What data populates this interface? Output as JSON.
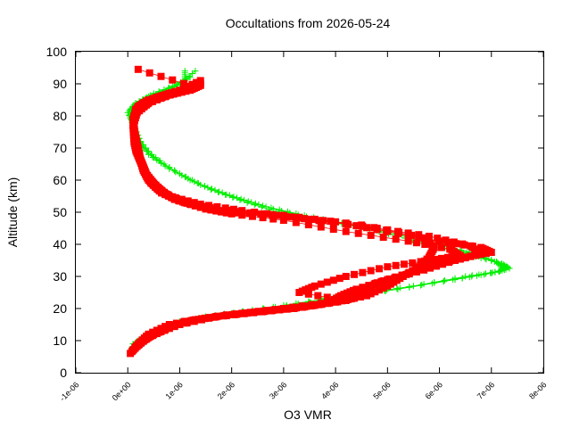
{
  "chart_data": {
    "type": "scatter",
    "title": "Occultations from 2026-05-24",
    "xlabel": "O3 VMR",
    "ylabel": "Altitude (km)",
    "xlim": [
      -1e-06,
      8e-06
    ],
    "ylim": [
      0,
      100
    ],
    "grid": false,
    "legend": "none",
    "x_ticks": [
      {
        "value": -1e-06,
        "label": "-1e-06"
      },
      {
        "value": 0,
        "label": "0e+00"
      },
      {
        "value": 1e-06,
        "label": "1e-06"
      },
      {
        "value": 2e-06,
        "label": "2e-06"
      },
      {
        "value": 3e-06,
        "label": "3e-06"
      },
      {
        "value": 4e-06,
        "label": "4e-06"
      },
      {
        "value": 5e-06,
        "label": "5e-06"
      },
      {
        "value": 6e-06,
        "label": "6e-06"
      },
      {
        "value": 7e-06,
        "label": "7e-06"
      },
      {
        "value": 8e-06,
        "label": "8e-06"
      }
    ],
    "y_ticks": [
      {
        "value": 0,
        "label": "0"
      },
      {
        "value": 10,
        "label": "10"
      },
      {
        "value": 20,
        "label": "20"
      },
      {
        "value": 30,
        "label": "30"
      },
      {
        "value": 40,
        "label": "40"
      },
      {
        "value": 50,
        "label": "50"
      },
      {
        "value": 60,
        "label": "60"
      },
      {
        "value": 70,
        "label": "70"
      },
      {
        "value": 80,
        "label": "80"
      },
      {
        "value": 90,
        "label": "90"
      },
      {
        "value": 100,
        "label": "100"
      }
    ],
    "series": [
      {
        "marker": "plus",
        "color": "#00ee00",
        "profiles": [
          [
            [
              6e-08,
              7
            ],
            [
              2e-07,
              10
            ],
            [
              5e-07,
              13
            ],
            [
              1e-06,
              16
            ],
            [
              1.8e-06,
              18
            ],
            [
              2.8e-06,
              20
            ],
            [
              4e-06,
              23
            ],
            [
              5.2e-06,
              26
            ],
            [
              6.3e-06,
              29
            ],
            [
              7e-06,
              31
            ],
            [
              7.35e-06,
              32.5
            ],
            [
              7.2e-06,
              34
            ],
            [
              6.7e-06,
              37
            ],
            [
              6e-06,
              40
            ],
            [
              5e-06,
              44
            ],
            [
              3.9e-06,
              47
            ],
            [
              3e-06,
              49.5
            ],
            [
              2.3e-06,
              53
            ],
            [
              1.6e-06,
              57
            ],
            [
              1e-06,
              62
            ],
            [
              5e-07,
              67
            ],
            [
              2.5e-07,
              72
            ],
            [
              1.2e-07,
              77
            ],
            [
              0,
              81
            ],
            [
              1.5e-07,
              84
            ],
            [
              5e-07,
              87
            ],
            [
              1e-06,
              90
            ],
            [
              1.3e-06,
              94
            ]
          ],
          [
            [
              8e-08,
              8
            ],
            [
              3e-07,
              11
            ],
            [
              7e-07,
              14
            ],
            [
              1.2e-06,
              16.5
            ],
            [
              2e-06,
              18.5
            ],
            [
              3e-06,
              21
            ],
            [
              4.2e-06,
              24
            ],
            [
              5.5e-06,
              27
            ],
            [
              6.5e-06,
              30
            ],
            [
              7.15e-06,
              31.5
            ],
            [
              7.3e-06,
              33
            ],
            [
              7e-06,
              35
            ],
            [
              6.4e-06,
              38
            ],
            [
              5.6e-06,
              41.5
            ],
            [
              4.6e-06,
              45
            ],
            [
              3.6e-06,
              48
            ],
            [
              2.8e-06,
              51
            ],
            [
              2.1e-06,
              54.5
            ],
            [
              1.4e-06,
              58.5
            ],
            [
              8e-07,
              63.5
            ],
            [
              4e-07,
              68
            ],
            [
              2e-07,
              73
            ],
            [
              8e-08,
              78
            ],
            [
              5e-08,
              82
            ],
            [
              3e-07,
              85
            ],
            [
              7e-07,
              88
            ],
            [
              1.1e-06,
              91
            ],
            [
              1.1e-06,
              94
            ]
          ],
          [
            [
              1e-07,
              9
            ],
            [
              4e-07,
              12
            ],
            [
              9e-07,
              15
            ],
            [
              1.5e-06,
              17.5
            ],
            [
              2.4e-06,
              19.5
            ],
            [
              3.5e-06,
              22
            ],
            [
              4.7e-06,
              25
            ],
            [
              5.9e-06,
              28
            ],
            [
              6.8e-06,
              30.5
            ],
            [
              7.25e-06,
              32
            ],
            [
              7.1e-06,
              34.5
            ],
            [
              6.6e-06,
              36.5
            ],
            [
              5.9e-06,
              39.5
            ],
            [
              5.2e-06,
              42.5
            ],
            [
              4.3e-06,
              46
            ],
            [
              3.4e-06,
              49
            ],
            [
              2.6e-06,
              52
            ],
            [
              1.9e-06,
              55.5
            ],
            [
              1.2e-06,
              60
            ],
            [
              7e-07,
              65
            ],
            [
              3e-07,
              70
            ],
            [
              1.5e-07,
              75
            ],
            [
              4e-08,
              80
            ],
            [
              1e-07,
              83
            ],
            [
              4e-07,
              86
            ],
            [
              9e-07,
              89
            ],
            [
              1.2e-06,
              92
            ]
          ]
        ]
      },
      {
        "marker": "square",
        "color": "#ff0000",
        "profiles": [
          [
            [
              5e-08,
              6
            ],
            [
              2e-07,
              9
            ],
            [
              4e-07,
              12
            ],
            [
              8e-07,
              15
            ],
            [
              1.5e-06,
              17
            ],
            [
              2.5e-06,
              19
            ],
            [
              3.2e-06,
              20
            ],
            [
              4e-06,
              22
            ],
            [
              4.6e-06,
              24
            ],
            [
              5e-06,
              27
            ],
            [
              5.3e-06,
              30
            ],
            [
              5.6e-06,
              33
            ],
            [
              5.8e-06,
              36
            ],
            [
              5.9e-06,
              39
            ],
            [
              5.7e-06,
              42
            ],
            [
              4.5e-06,
              46
            ],
            [
              3e-06,
              49
            ],
            [
              1.9e-06,
              50
            ],
            [
              1.3e-06,
              52
            ],
            [
              9e-07,
              54
            ],
            [
              6e-07,
              57
            ],
            [
              4e-07,
              60
            ],
            [
              3e-07,
              63
            ],
            [
              2.5e-07,
              66
            ],
            [
              2e-07,
              70
            ],
            [
              1.5e-07,
              73
            ],
            [
              1.2e-07,
              76
            ],
            [
              1.2e-07,
              80
            ],
            [
              2e-07,
              83
            ],
            [
              4e-07,
              85
            ],
            [
              8e-07,
              87
            ],
            [
              1.3e-06,
              89
            ],
            [
              1.4e-06,
              90
            ]
          ],
          [
            [
              1e-07,
              7
            ],
            [
              3e-07,
              10
            ],
            [
              6e-07,
              13
            ],
            [
              1.1e-06,
              16
            ],
            [
              1.9e-06,
              18
            ],
            [
              2.8e-06,
              19.5
            ],
            [
              3.6e-06,
              21
            ],
            [
              4.3e-06,
              23
            ],
            [
              4.5e-06,
              25
            ],
            [
              4.8e-06,
              28
            ],
            [
              5.4e-06,
              31
            ],
            [
              6e-06,
              34
            ],
            [
              6.5e-06,
              36
            ],
            [
              7e-06,
              37.5
            ],
            [
              6.8e-06,
              39
            ],
            [
              6e-06,
              41
            ],
            [
              5e-06,
              44
            ],
            [
              4e-06,
              47
            ],
            [
              2.8e-06,
              49
            ],
            [
              1.7e-06,
              51
            ],
            [
              1.1e-06,
              53
            ],
            [
              7e-07,
              56
            ],
            [
              5e-07,
              59
            ],
            [
              3.5e-07,
              62
            ],
            [
              2.8e-07,
              65
            ],
            [
              2e-07,
              68
            ],
            [
              1.8e-07,
              71
            ],
            [
              1.4e-07,
              74
            ],
            [
              1.1e-07,
              78
            ],
            [
              1.5e-07,
              82
            ],
            [
              3e-07,
              84
            ],
            [
              6e-07,
              86
            ],
            [
              1e-06,
              88
            ],
            [
              1.4e-06,
              91
            ]
          ],
          [
            [
              1.5e-07,
              8
            ],
            [
              4e-07,
              11
            ],
            [
              8e-07,
              14
            ],
            [
              1.3e-06,
              16.5
            ],
            [
              2.2e-06,
              18.5
            ],
            [
              3e-06,
              20
            ],
            [
              3.9e-06,
              22
            ],
            [
              4.1e-06,
              24
            ],
            [
              4.4e-06,
              26
            ],
            [
              5e-06,
              29
            ],
            [
              5.7e-06,
              32
            ],
            [
              6.3e-06,
              35
            ],
            [
              6.8e-06,
              37
            ],
            [
              6.6e-06,
              39.5
            ],
            [
              5.8e-06,
              42.5
            ],
            [
              4.8e-06,
              45
            ],
            [
              3.4e-06,
              48
            ],
            [
              2.2e-06,
              50.5
            ],
            [
              1.4e-06,
              52.5
            ],
            [
              8e-07,
              55
            ],
            [
              5.5e-07,
              58
            ],
            [
              3.8e-07,
              61
            ],
            [
              3e-07,
              64
            ],
            [
              2.2e-07,
              67
            ],
            [
              1.7e-07,
              72
            ],
            [
              1.3e-07,
              75
            ],
            [
              1e-07,
              79
            ],
            [
              2e-07,
              82
            ],
            [
              5e-07,
              85
            ],
            [
              9e-07,
              87
            ],
            [
              1.3e-06,
              89
            ],
            [
              2e-07,
              94.5
            ]
          ],
          [
            [
              2e-07,
              9
            ],
            [
              5e-07,
              12
            ],
            [
              1e-06,
              15
            ],
            [
              1.7e-06,
              17.5
            ],
            [
              2.6e-06,
              19
            ],
            [
              3.4e-06,
              20.5
            ],
            [
              4.2e-06,
              22.5
            ],
            [
              3.3e-06,
              25
            ],
            [
              3.6e-06,
              27
            ],
            [
              4.2e-06,
              30
            ],
            [
              5e-06,
              33
            ],
            [
              5.8e-06,
              35
            ],
            [
              6.4e-06,
              36.5
            ],
            [
              6.2e-06,
              38.5
            ],
            [
              5.4e-06,
              41
            ],
            [
              4.2e-06,
              44
            ],
            [
              3e-06,
              47.5
            ],
            [
              2e-06,
              49.5
            ],
            [
              1.5e-06,
              51
            ],
            [
              1e-06,
              53.5
            ],
            [
              6.5e-07,
              56
            ],
            [
              4.5e-07,
              59
            ],
            [
              3.2e-07,
              62.5
            ],
            [
              2.4e-07,
              66
            ],
            [
              1.6e-07,
              69
            ],
            [
              1.2e-07,
              72
            ],
            [
              1e-07,
              77
            ],
            [
              1.8e-07,
              81
            ],
            [
              4e-07,
              84
            ],
            [
              8e-07,
              86.5
            ],
            [
              1.2e-06,
              88
            ],
            [
              1.4e-06,
              89.5
            ]
          ]
        ]
      }
    ]
  }
}
